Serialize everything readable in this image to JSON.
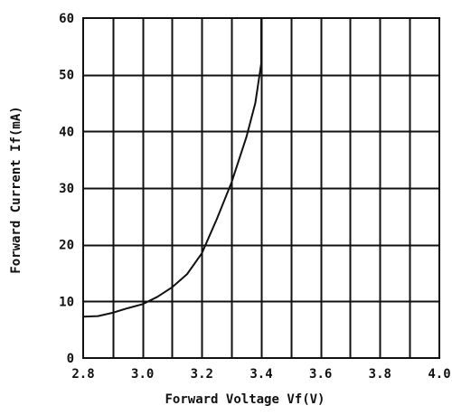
{
  "chart_data": {
    "type": "line",
    "title": "",
    "xlabel": "Forward Voltage Vf(V)",
    "ylabel": "Forward Current If(mA)",
    "xlim": [
      2.8,
      4.0
    ],
    "ylim": [
      0,
      60
    ],
    "xticks": [
      2.8,
      3.0,
      3.2,
      3.4,
      3.6,
      3.8,
      4.0
    ],
    "xtick_labels": [
      "2.8",
      "3.0",
      "3.2",
      "3.4",
      "3.6",
      "3.8",
      "4.0"
    ],
    "yticks": [
      0,
      10,
      20,
      30,
      40,
      50,
      60
    ],
    "ytick_labels": [
      "0",
      "10",
      "20",
      "30",
      "40",
      "50",
      "60"
    ],
    "x_grid_step": 0.1,
    "grid": true,
    "legend": "none",
    "colors": {
      "line": "#111111",
      "grid": "#111111",
      "background": "#ffffff"
    },
    "series": [
      {
        "x": [
          2.8,
          2.85,
          2.9,
          2.95,
          3.0,
          3.05,
          3.1,
          3.15,
          3.2,
          3.25,
          3.3,
          3.35,
          3.38,
          3.4,
          3.4
        ],
        "y": [
          7.3,
          7.4,
          8.0,
          8.8,
          9.5,
          10.8,
          12.5,
          14.8,
          18.5,
          24.5,
          31.0,
          39.0,
          45.0,
          52.0,
          60.0
        ]
      }
    ]
  }
}
